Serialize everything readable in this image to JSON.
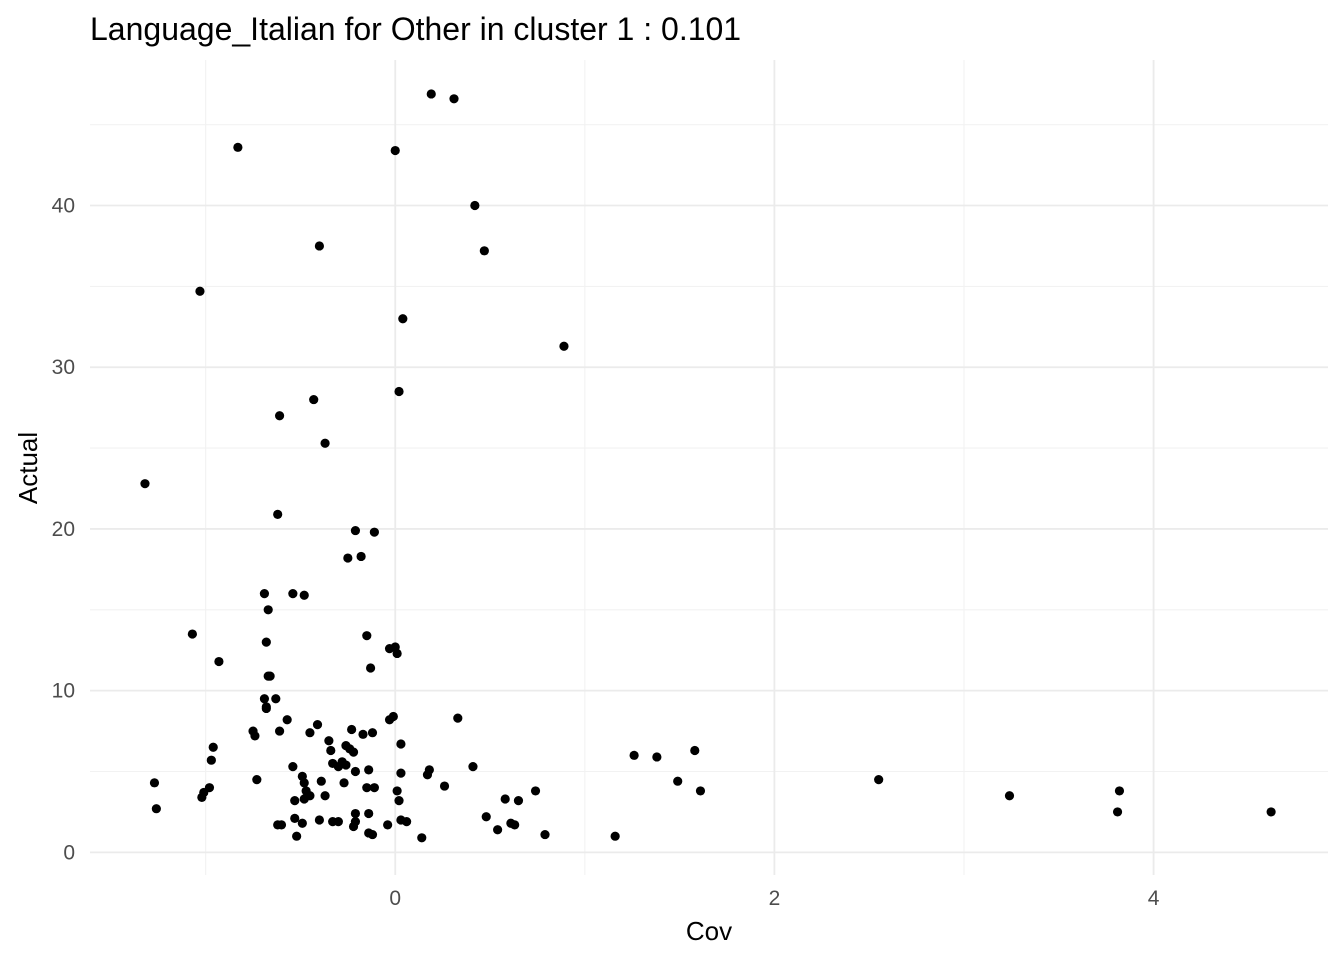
{
  "chart_data": {
    "type": "scatter",
    "title": "Language_Italian for Other in cluster 1 : 0.101",
    "xlabel": "Cov",
    "ylabel": "Actual",
    "xlim": [
      -1.61,
      4.92
    ],
    "ylim": [
      -1.4,
      49.0
    ],
    "x_major_ticks": [
      0,
      2,
      4
    ],
    "x_minor_ticks": [
      -1,
      1,
      3
    ],
    "y_major_ticks": [
      0,
      10,
      20,
      30,
      40
    ],
    "y_minor_ticks": [
      5,
      15,
      25,
      35,
      45
    ],
    "grid": true,
    "legend": "none",
    "points": [
      [
        0.19,
        46.9
      ],
      [
        0.31,
        46.6
      ],
      [
        -0.83,
        43.6
      ],
      [
        0.0,
        43.4
      ],
      [
        0.42,
        40.0
      ],
      [
        0.47,
        37.2
      ],
      [
        -0.4,
        37.5
      ],
      [
        -1.03,
        34.7
      ],
      [
        0.04,
        33.0
      ],
      [
        0.89,
        31.3
      ],
      [
        0.02,
        28.5
      ],
      [
        -0.43,
        28.0
      ],
      [
        -0.61,
        27.0
      ],
      [
        -0.37,
        25.3
      ],
      [
        -1.32,
        22.8
      ],
      [
        -0.62,
        20.9
      ],
      [
        -0.21,
        19.9
      ],
      [
        -0.11,
        19.8
      ],
      [
        -0.25,
        18.2
      ],
      [
        -0.18,
        18.3
      ],
      [
        -0.69,
        16.0
      ],
      [
        -0.54,
        16.0
      ],
      [
        -0.48,
        15.9
      ],
      [
        -0.67,
        15.0
      ],
      [
        -1.07,
        13.5
      ],
      [
        -0.68,
        13.0
      ],
      [
        -0.15,
        13.4
      ],
      [
        -0.03,
        12.6
      ],
      [
        0.0,
        12.7
      ],
      [
        0.01,
        12.3
      ],
      [
        -0.93,
        11.8
      ],
      [
        -0.13,
        11.4
      ],
      [
        -0.66,
        10.9
      ],
      [
        -0.67,
        10.9
      ],
      [
        -0.69,
        9.5
      ],
      [
        -0.63,
        9.5
      ],
      [
        -0.68,
        9.0
      ],
      [
        -0.68,
        8.9
      ],
      [
        -0.57,
        8.2
      ],
      [
        0.33,
        8.3
      ],
      [
        -0.01,
        8.4
      ],
      [
        -0.03,
        8.2
      ],
      [
        -0.41,
        7.9
      ],
      [
        -0.75,
        7.5
      ],
      [
        -0.61,
        7.5
      ],
      [
        -0.45,
        7.4
      ],
      [
        -0.23,
        7.6
      ],
      [
        -0.17,
        7.3
      ],
      [
        -0.12,
        7.4
      ],
      [
        -0.74,
        7.2
      ],
      [
        -0.96,
        6.5
      ],
      [
        -0.35,
        6.9
      ],
      [
        -0.26,
        6.6
      ],
      [
        -0.24,
        6.4
      ],
      [
        -0.22,
        6.2
      ],
      [
        0.03,
        6.7
      ],
      [
        -0.34,
        6.3
      ],
      [
        1.26,
        6.0
      ],
      [
        1.38,
        5.9
      ],
      [
        1.58,
        6.3
      ],
      [
        -0.97,
        5.7
      ],
      [
        -0.33,
        5.5
      ],
      [
        -0.28,
        5.6
      ],
      [
        -0.3,
        5.3
      ],
      [
        -0.26,
        5.4
      ],
      [
        -0.54,
        5.3
      ],
      [
        0.41,
        5.3
      ],
      [
        -0.21,
        5.0
      ],
      [
        -0.14,
        5.1
      ],
      [
        0.03,
        4.9
      ],
      [
        0.18,
        5.1
      ],
      [
        0.17,
        4.8
      ],
      [
        -0.49,
        4.7
      ],
      [
        -0.39,
        4.4
      ],
      [
        -0.73,
        4.5
      ],
      [
        1.49,
        4.4
      ],
      [
        2.55,
        4.5
      ],
      [
        -1.27,
        4.3
      ],
      [
        -0.48,
        4.3
      ],
      [
        -0.27,
        4.3
      ],
      [
        -0.15,
        4.0
      ],
      [
        -0.11,
        4.0
      ],
      [
        0.26,
        4.1
      ],
      [
        -0.98,
        4.0
      ],
      [
        -1.01,
        3.7
      ],
      [
        -1.02,
        3.4
      ],
      [
        -0.47,
        3.8
      ],
      [
        0.01,
        3.8
      ],
      [
        0.74,
        3.8
      ],
      [
        1.61,
        3.8
      ],
      [
        3.82,
        3.8
      ],
      [
        -0.45,
        3.5
      ],
      [
        -0.37,
        3.5
      ],
      [
        -0.48,
        3.3
      ],
      [
        3.24,
        3.5
      ],
      [
        -0.53,
        3.2
      ],
      [
        0.58,
        3.3
      ],
      [
        0.65,
        3.2
      ],
      [
        0.02,
        3.2
      ],
      [
        -1.26,
        2.7
      ],
      [
        -0.21,
        2.4
      ],
      [
        -0.14,
        2.4
      ],
      [
        0.48,
        2.2
      ],
      [
        3.81,
        2.5
      ],
      [
        4.62,
        2.5
      ],
      [
        -0.53,
        2.1
      ],
      [
        -0.4,
        2.0
      ],
      [
        -0.33,
        1.9
      ],
      [
        -0.3,
        1.9
      ],
      [
        -0.21,
        1.9
      ],
      [
        0.03,
        2.0
      ],
      [
        0.06,
        1.9
      ],
      [
        0.61,
        1.8
      ],
      [
        0.63,
        1.7
      ],
      [
        -0.62,
        1.7
      ],
      [
        -0.6,
        1.7
      ],
      [
        -0.49,
        1.8
      ],
      [
        -0.22,
        1.6
      ],
      [
        -0.04,
        1.7
      ],
      [
        0.54,
        1.4
      ],
      [
        -0.14,
        1.2
      ],
      [
        -0.12,
        1.1
      ],
      [
        0.79,
        1.1
      ],
      [
        -0.52,
        1.0
      ],
      [
        0.14,
        0.9
      ],
      [
        1.16,
        1.0
      ]
    ]
  }
}
